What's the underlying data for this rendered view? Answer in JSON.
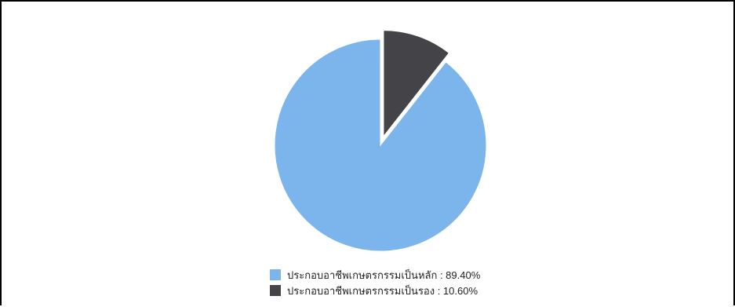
{
  "chart_data": {
    "type": "pie",
    "slices": [
      {
        "label": "ประกอบอาชีพเกษตรกรรมเป็นหลัก",
        "value": 89.4,
        "value_label": "89.40%",
        "color": "#7cb5ec",
        "exploded": false
      },
      {
        "label": "ประกอบอาชีพเกษตรกรรมเป็นรอง",
        "value": 10.6,
        "value_label": "10.60%",
        "color": "#434348",
        "exploded": true
      }
    ],
    "legend": {
      "placement": "bottom",
      "items": [
        {
          "label": "ประกอบอาชีพเกษตรกรรมเป็นหลัก : 89.40%",
          "color": "#7cb5ec"
        },
        {
          "label": "ประกอบอาชีพเกษตรกรรมเป็นรอง : 10.60%",
          "color": "#434348"
        }
      ]
    }
  }
}
